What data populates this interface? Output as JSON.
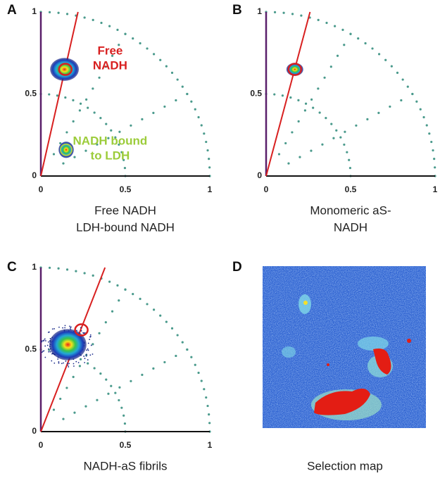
{
  "panels": [
    {
      "letter": "A",
      "caption": [
        "Free NADH",
        "LDH-bound NADH"
      ],
      "xticks": [
        "0",
        "0.5",
        "1"
      ],
      "yticks": [
        "0",
        "0.5",
        "1"
      ],
      "annotations": [
        {
          "lines": [
            "Free",
            "NADH"
          ]
        },
        {
          "lines": [
            "NADH bound",
            "to LDH"
          ]
        }
      ]
    },
    {
      "letter": "B",
      "caption": [
        "Monomeric aS-",
        "NADH"
      ],
      "xticks": [
        "0",
        "0.5",
        "1"
      ],
      "yticks": [
        "0",
        "0.5",
        "1"
      ]
    },
    {
      "letter": "C",
      "caption": [
        "NADH-aS fibrils"
      ],
      "xticks": [
        "0",
        "0.5",
        "1"
      ],
      "yticks": [
        "0",
        "0.5",
        "1"
      ]
    },
    {
      "letter": "D",
      "caption": [
        "Selection map"
      ]
    }
  ]
}
